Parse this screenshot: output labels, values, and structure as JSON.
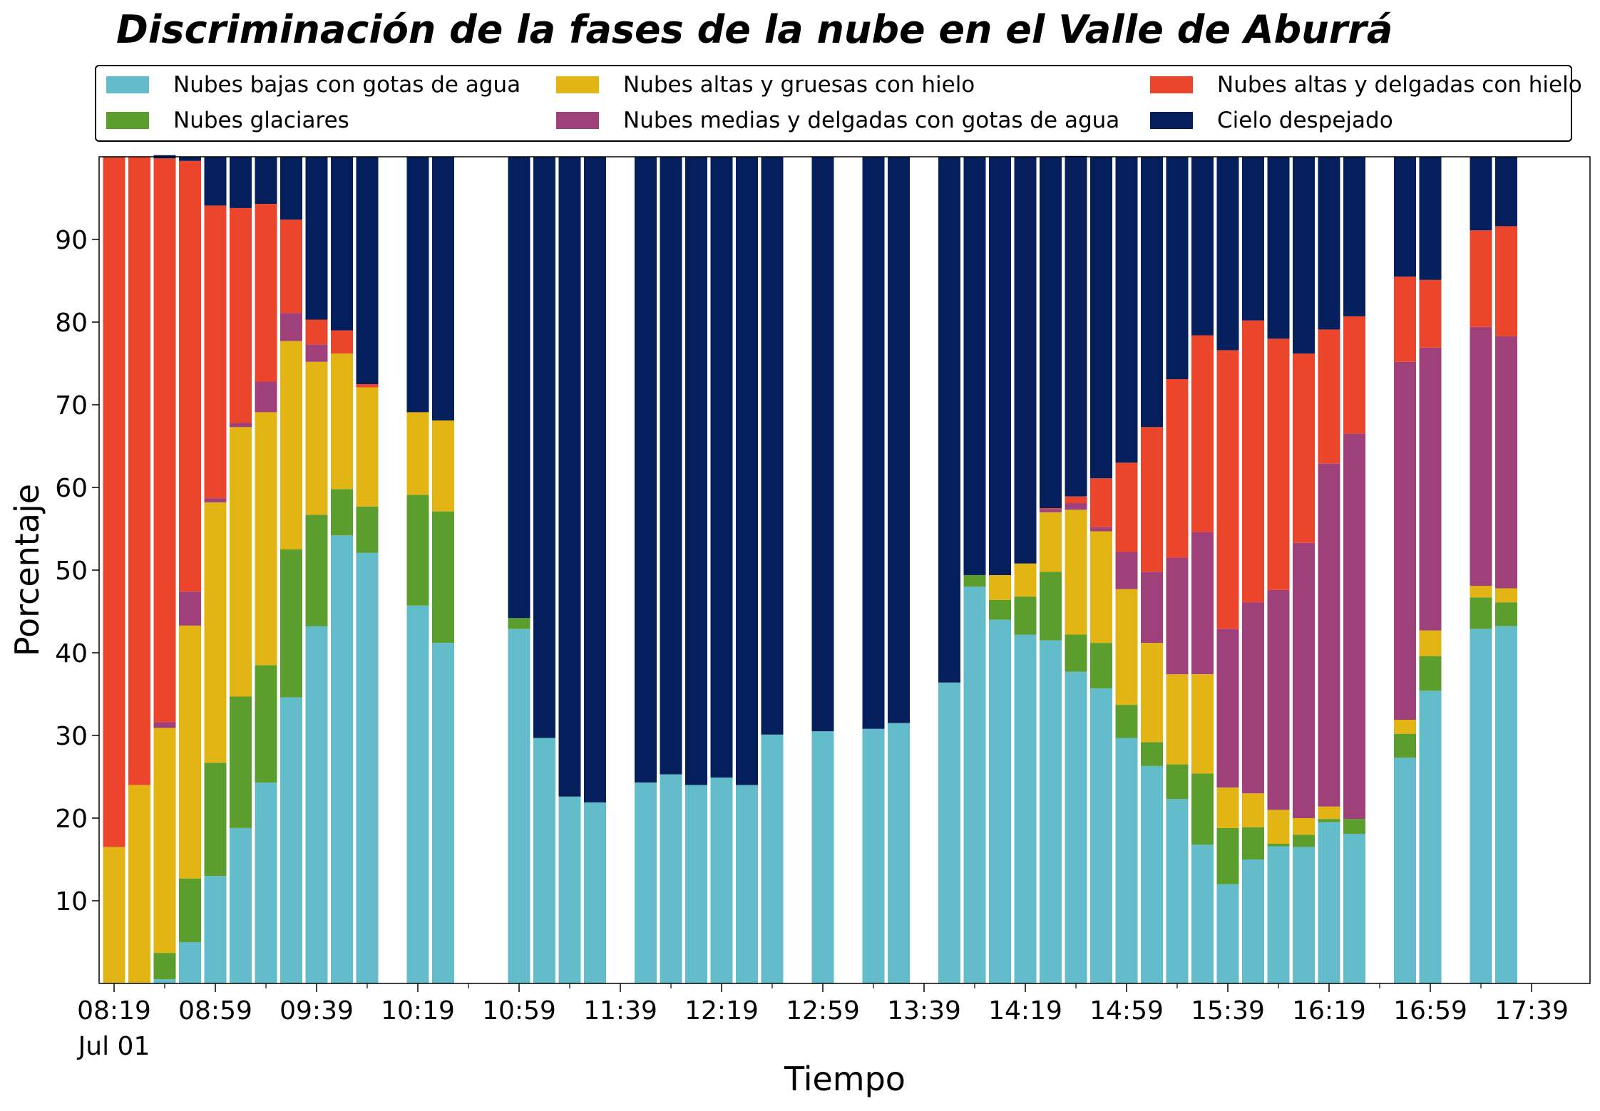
{
  "chart_data": {
    "type": "bar",
    "stacked": true,
    "title": "Discriminación de la fases de la nube en el Valle de Aburrá",
    "xlabel": "Tiempo",
    "ylabel": "Porcentaje",
    "ylim": [
      0,
      100
    ],
    "yticks": [
      10,
      20,
      30,
      40,
      50,
      60,
      70,
      80,
      90
    ],
    "xticks": [
      "08:19",
      "08:59",
      "09:39",
      "10:19",
      "10:59",
      "11:39",
      "12:19",
      "12:59",
      "13:39",
      "14:19",
      "14:59",
      "15:39",
      "16:19",
      "16:59",
      "17:39"
    ],
    "xtick_sublabel": "Jul 01",
    "grid": false,
    "legend_position": "top",
    "time_start": "08:19",
    "time_step_minutes": 10,
    "categories": [
      "08:19",
      "08:29",
      "08:39",
      "08:49",
      "08:59",
      "09:09",
      "09:19",
      "09:29",
      "09:39",
      "09:49",
      "09:59",
      "10:09",
      "10:19",
      "10:29",
      "10:39",
      "10:49",
      "10:59",
      "11:09",
      "11:19",
      "11:29",
      "11:39",
      "11:49",
      "11:59",
      "12:09",
      "12:19",
      "12:29",
      "12:39",
      "12:49",
      "12:59",
      "13:09",
      "13:19",
      "13:29",
      "13:39",
      "13:49",
      "13:59",
      "14:09",
      "14:19",
      "14:29",
      "14:39",
      "14:49",
      "14:59",
      "15:09",
      "15:19",
      "15:29",
      "15:39",
      "15:49",
      "15:59",
      "16:09",
      "16:19",
      "16:29",
      "16:39",
      "16:49",
      "16:59",
      "17:09",
      "17:19",
      "17:29",
      "17:39",
      "17:49"
    ],
    "series": [
      {
        "name": "Nubes bajas con gotas de agua",
        "color": "#63bcc9",
        "values": [
          0,
          0,
          0.5,
          5,
          13,
          18.8,
          24.3,
          34.6,
          43.2,
          54.2,
          52.1,
          null,
          45.7,
          41.2,
          null,
          null,
          42.9,
          29.7,
          22.6,
          21.9,
          null,
          24.3,
          25.3,
          24,
          24.9,
          24,
          30.1,
          null,
          30.5,
          null,
          30.8,
          31.5,
          null,
          36.4,
          48,
          44,
          42.2,
          41.5,
          37.7,
          35.7,
          29.7,
          26.3,
          22.3,
          16.8,
          12,
          15,
          16.6,
          16.5,
          19.5,
          18.1,
          null,
          27.3,
          35.4,
          null,
          42.9,
          43.2,
          null,
          null
        ]
      },
      {
        "name": "Nubes glaciares",
        "color": "#5c9e2e",
        "values": [
          0,
          0,
          3.2,
          7.7,
          13.7,
          15.9,
          14.2,
          17.9,
          13.5,
          5.6,
          5.6,
          null,
          13.4,
          15.9,
          null,
          null,
          1.3,
          0,
          0,
          0,
          null,
          0,
          0,
          0,
          0,
          0,
          0,
          null,
          0,
          null,
          0,
          0,
          null,
          0,
          1.4,
          2.4,
          4.6,
          8.3,
          4.5,
          5.5,
          4,
          2.9,
          4.2,
          8.6,
          6.8,
          3.9,
          0.3,
          1.5,
          0.4,
          1.8,
          null,
          2.9,
          4.2,
          null,
          3.8,
          2.9,
          null,
          null
        ]
      },
      {
        "name": "Nubes altas y gruesas con hielo",
        "color": "#e3b514",
        "values": [
          16.5,
          24,
          27.2,
          30.6,
          31.5,
          32.6,
          30.6,
          25.2,
          18.5,
          16.4,
          14.4,
          null,
          10,
          11,
          null,
          null,
          0,
          0,
          0,
          0,
          null,
          0,
          0,
          0,
          0,
          0,
          0,
          null,
          0,
          null,
          0,
          0,
          null,
          0,
          0,
          3,
          4,
          7.2,
          15.1,
          13.5,
          14,
          12,
          10.9,
          12,
          4.9,
          4.1,
          4.1,
          2,
          1.5,
          0,
          null,
          1.7,
          3.1,
          null,
          1.4,
          1.7,
          null,
          null
        ]
      },
      {
        "name": "Nubes medias y delgadas con gotas de agua",
        "color": "#a0407a",
        "values": [
          0,
          0,
          0.7,
          4.1,
          0.5,
          0.5,
          3.7,
          3.4,
          2.1,
          0,
          0,
          null,
          0,
          0,
          0,
          null,
          0,
          0,
          0,
          0,
          null,
          0,
          0,
          0,
          0,
          0,
          0,
          null,
          0,
          null,
          0,
          0,
          null,
          0,
          0,
          0,
          0,
          0.4,
          0.8,
          0.5,
          4.5,
          8.6,
          14.1,
          17.2,
          19.2,
          23.1,
          26.6,
          33.3,
          41.5,
          46.6,
          null,
          43.3,
          34.2,
          null,
          31.3,
          30.5,
          null,
          null
        ]
      },
      {
        "name": "Nubes altas y delgadas con hielo",
        "color": "#eb462b",
        "values": [
          83.5,
          76,
          68.2,
          52.1,
          35.4,
          26,
          21.5,
          11.3,
          3,
          2.8,
          0.4,
          null,
          0,
          0,
          null,
          null,
          0,
          0,
          0,
          0,
          null,
          0,
          0,
          0,
          0,
          0,
          0,
          null,
          0,
          null,
          0,
          0,
          null,
          0,
          0,
          0,
          0,
          0.1,
          0.8,
          5.9,
          10.8,
          17.5,
          21.6,
          23.8,
          33.7,
          34.1,
          30.4,
          22.9,
          16.2,
          14.2,
          null,
          10.3,
          8.2,
          null,
          11.7,
          13.3,
          null,
          null
        ]
      },
      {
        "name": "Cielo despejado",
        "color": "#041f5c",
        "values": [
          0,
          0,
          0.4,
          0.5,
          5.9,
          6.2,
          5.7,
          7.6,
          19.7,
          21,
          27.5,
          null,
          30.9,
          31.9,
          null,
          null,
          55.8,
          70.3,
          77.4,
          78.1,
          null,
          75.7,
          74.7,
          76,
          75.1,
          76,
          69.9,
          null,
          69.5,
          null,
          69.2,
          68.5,
          null,
          63.6,
          50.6,
          50.6,
          49.2,
          42.5,
          41.2,
          38.9,
          37,
          32.7,
          26.9,
          21.6,
          23.4,
          19.8,
          22,
          23.8,
          20.9,
          19.3,
          null,
          14.5,
          14.9,
          null,
          8.9,
          8.4,
          null,
          null
        ]
      }
    ]
  }
}
